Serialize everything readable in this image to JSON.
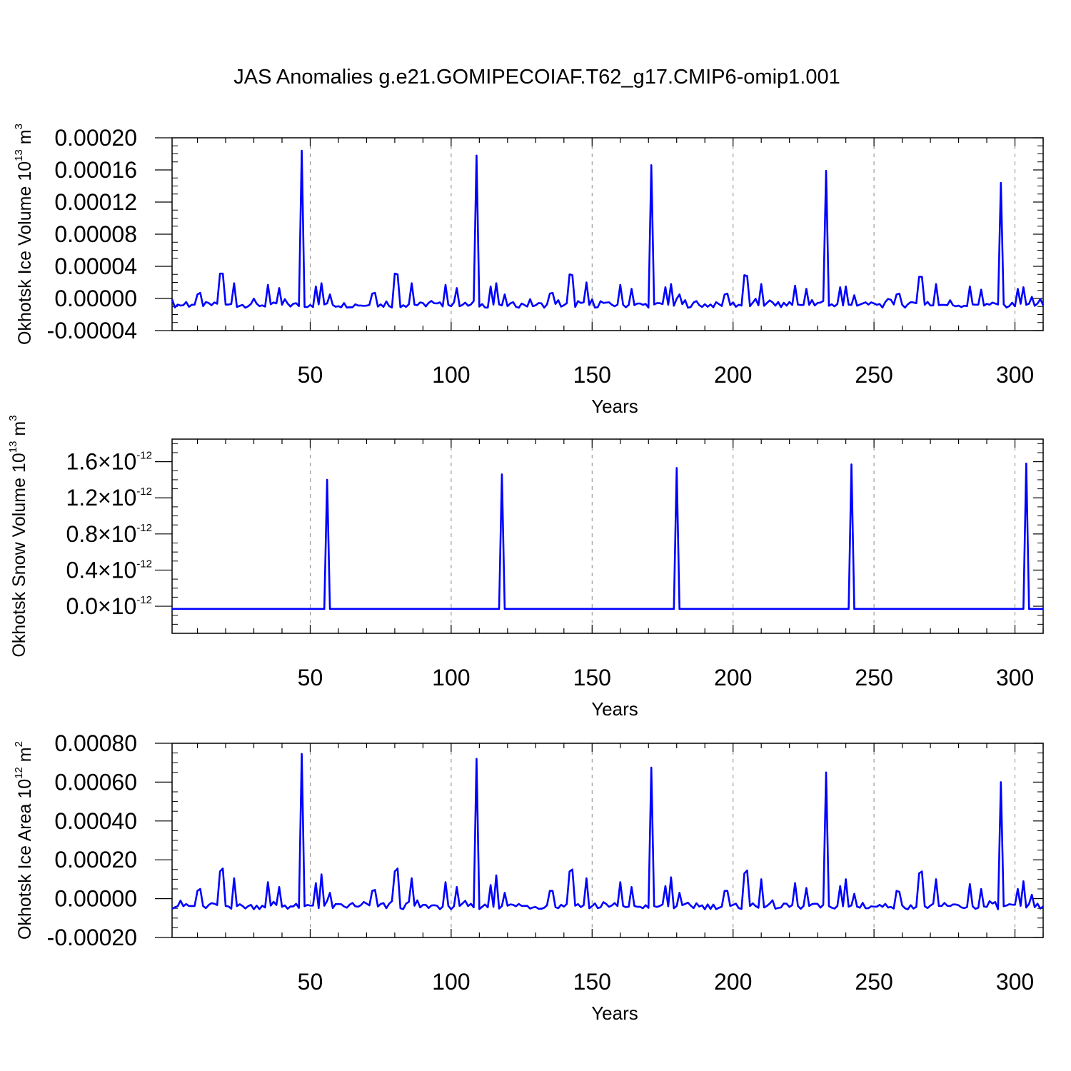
{
  "figure": {
    "title": "JAS Anomalies g.e21.GOMIPECOIAF.T62_g17.CMIP6-omip1.001",
    "series_color": "#0000ff"
  },
  "chart_data": [
    {
      "type": "line",
      "ylabel": "Okhotsk Ice Volume",
      "units_base": "10",
      "units_exp": "13",
      "units_sym": "m",
      "units_pow": "3",
      "xlabel": "Years",
      "xlim": [
        1,
        310
      ],
      "ylim": [
        -4e-05,
        0.0002
      ],
      "x_ticks": [
        "50",
        "100",
        "150",
        "200",
        "250",
        "300"
      ],
      "y_ticks": [
        "0.00020",
        "0.00016",
        "0.00012",
        "0.00008",
        "0.00004",
        "0.00000",
        "-0.00004"
      ],
      "y_tick_values": [
        0.0002,
        0.00016,
        0.00012,
        8e-05,
        4e-05,
        0.0,
        -4e-05
      ],
      "grid_x": true,
      "base": -8e-06,
      "spikes": [
        [
          18,
          3.1e-05
        ],
        [
          19,
          3.1e-05
        ],
        [
          80,
          3.1e-05
        ],
        [
          81,
          3e-05
        ],
        [
          142,
          3e-05
        ],
        [
          143,
          2.9e-05
        ],
        [
          204,
          2.9e-05
        ],
        [
          205,
          2.8e-05
        ],
        [
          266,
          2.7e-05
        ],
        [
          267,
          2.7e-05
        ],
        [
          47,
          0.000184
        ],
        [
          109,
          0.000178
        ],
        [
          171,
          0.000166
        ],
        [
          233,
          0.000159
        ],
        [
          295,
          0.000144
        ],
        [
          10,
          5e-06
        ],
        [
          11,
          7e-06
        ],
        [
          23,
          1.9e-05
        ],
        [
          35,
          1.7e-05
        ],
        [
          39,
          1.3e-05
        ],
        [
          52,
          1.5e-05
        ],
        [
          54,
          1.9e-05
        ],
        [
          57,
          5e-06
        ],
        [
          72,
          6e-06
        ],
        [
          73,
          7e-06
        ],
        [
          86,
          1.9e-05
        ],
        [
          98,
          1.7e-05
        ],
        [
          102,
          1.3e-05
        ],
        [
          114,
          1.5e-05
        ],
        [
          116,
          1.9e-05
        ],
        [
          119,
          5e-06
        ],
        [
          135,
          6e-06
        ],
        [
          136,
          7e-06
        ],
        [
          148,
          2e-05
        ],
        [
          160,
          1.7e-05
        ],
        [
          164,
          1.2e-05
        ],
        [
          176,
          1.4e-05
        ],
        [
          178,
          1.8e-05
        ],
        [
          181,
          5e-06
        ],
        [
          197,
          5e-06
        ],
        [
          198,
          6e-06
        ],
        [
          210,
          1.8e-05
        ],
        [
          222,
          1.6e-05
        ],
        [
          226,
          1.2e-05
        ],
        [
          238,
          1.4e-05
        ],
        [
          240,
          1.5e-05
        ],
        [
          243,
          4e-06
        ],
        [
          258,
          5e-06
        ],
        [
          259,
          6e-06
        ],
        [
          272,
          1.8e-05
        ],
        [
          284,
          1.5e-05
        ],
        [
          288,
          1.1e-05
        ],
        [
          301,
          1.2e-05
        ],
        [
          303,
          1.4e-05
        ],
        [
          306,
          2e-06
        ]
      ]
    },
    {
      "type": "line",
      "ylabel": "Okhotsk Snow Volume",
      "units_base": "10",
      "units_exp": "13",
      "units_sym": "m",
      "units_pow": "3",
      "xlabel": "Years",
      "xlim": [
        1,
        310
      ],
      "ylim": [
        -3e-13,
        1.85e-12
      ],
      "x_ticks": [
        "50",
        "100",
        "150",
        "200",
        "250",
        "300"
      ],
      "y_ticks": [
        "1.6",
        "1.2",
        "0.8",
        "0.4",
        "0.0"
      ],
      "y_tick_values": [
        1.6e-12,
        1.2e-12,
        8e-13,
        4e-13,
        0.0
      ],
      "y_tick_suffix": "×10",
      "y_tick_exp": "-12",
      "grid_x": true,
      "base": -3e-14,
      "spikes": [
        [
          56,
          1.4e-12
        ],
        [
          118,
          1.46e-12
        ],
        [
          180,
          1.53e-12
        ],
        [
          242,
          1.57e-12
        ],
        [
          304,
          1.58e-12
        ]
      ]
    },
    {
      "type": "line",
      "ylabel": "Okhotsk Ice Area",
      "units_base": "10",
      "units_exp": "12",
      "units_sym": "m",
      "units_pow": "2",
      "xlabel": "Years",
      "xlim": [
        1,
        310
      ],
      "ylim": [
        -0.0002,
        0.0008
      ],
      "x_ticks": [
        "50",
        "100",
        "150",
        "200",
        "250",
        "300"
      ],
      "y_ticks": [
        "0.00080",
        "0.00060",
        "0.00040",
        "0.00020",
        "0.00000",
        "-0.00020"
      ],
      "y_tick_values": [
        0.0008,
        0.0006,
        0.0004,
        0.0002,
        0.0,
        -0.0002
      ],
      "grid_x": true,
      "base": -4e-05,
      "spikes": [
        [
          18,
          0.00014
        ],
        [
          19,
          0.000155
        ],
        [
          80,
          0.00014
        ],
        [
          81,
          0.000155
        ],
        [
          142,
          0.00014
        ],
        [
          143,
          0.00015
        ],
        [
          204,
          0.00013
        ],
        [
          205,
          0.000145
        ],
        [
          266,
          0.00013
        ],
        [
          267,
          0.00014
        ],
        [
          47,
          0.000745
        ],
        [
          109,
          0.00072
        ],
        [
          171,
          0.000675
        ],
        [
          233,
          0.00065
        ],
        [
          295,
          0.0006
        ],
        [
          10,
          4e-05
        ],
        [
          11,
          5e-05
        ],
        [
          23,
          0.000105
        ],
        [
          35,
          8.5e-05
        ],
        [
          39,
          6e-05
        ],
        [
          52,
          8e-05
        ],
        [
          54,
          0.000125
        ],
        [
          57,
          3e-05
        ],
        [
          72,
          4e-05
        ],
        [
          73,
          4.5e-05
        ],
        [
          86,
          0.000105
        ],
        [
          98,
          8.5e-05
        ],
        [
          102,
          6e-05
        ],
        [
          114,
          7e-05
        ],
        [
          116,
          0.00012
        ],
        [
          119,
          3e-05
        ],
        [
          135,
          4e-05
        ],
        [
          136,
          4e-05
        ],
        [
          148,
          0.000105
        ],
        [
          160,
          8.5e-05
        ],
        [
          164,
          6e-05
        ],
        [
          176,
          6.5e-05
        ],
        [
          178,
          0.00011
        ],
        [
          181,
          3e-05
        ],
        [
          197,
          4e-05
        ],
        [
          198,
          4e-05
        ],
        [
          210,
          0.0001
        ],
        [
          222,
          8e-05
        ],
        [
          226,
          5.5e-05
        ],
        [
          238,
          6.5e-05
        ],
        [
          240,
          0.0001
        ],
        [
          243,
          2.5e-05
        ],
        [
          258,
          4e-05
        ],
        [
          259,
          3.5e-05
        ],
        [
          272,
          0.0001
        ],
        [
          284,
          7.5e-05
        ],
        [
          288,
          5e-05
        ],
        [
          301,
          5e-05
        ],
        [
          303,
          9e-05
        ],
        [
          306,
          2e-05
        ]
      ]
    }
  ]
}
